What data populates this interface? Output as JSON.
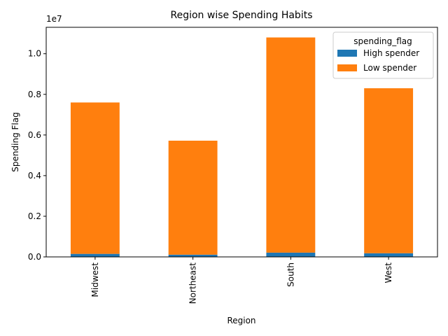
{
  "chart_data": {
    "type": "bar",
    "stacked": true,
    "title": "Region wise Spending Habits",
    "xlabel": "Region",
    "ylabel": "Spending Flag",
    "y_scale_label": "1e7",
    "categories": [
      "Midwest",
      "Northeast",
      "South",
      "West"
    ],
    "series": [
      {
        "name": "High spender",
        "color": "#1f77b4",
        "values": [
          150000,
          110000,
          210000,
          180000
        ]
      },
      {
        "name": "Low spender",
        "color": "#ff7f0e",
        "values": [
          7450000,
          5610000,
          10590000,
          8120000
        ]
      }
    ],
    "ylim": [
      0,
      11300000
    ],
    "yticks": [
      0,
      2000000,
      4000000,
      6000000,
      8000000,
      10000000
    ],
    "ytick_labels": [
      "0.0",
      "0.2",
      "0.4",
      "0.6",
      "0.8",
      "1.0"
    ],
    "legend": {
      "title": "spending_flag",
      "placement": "top-right"
    },
    "grid": false
  }
}
